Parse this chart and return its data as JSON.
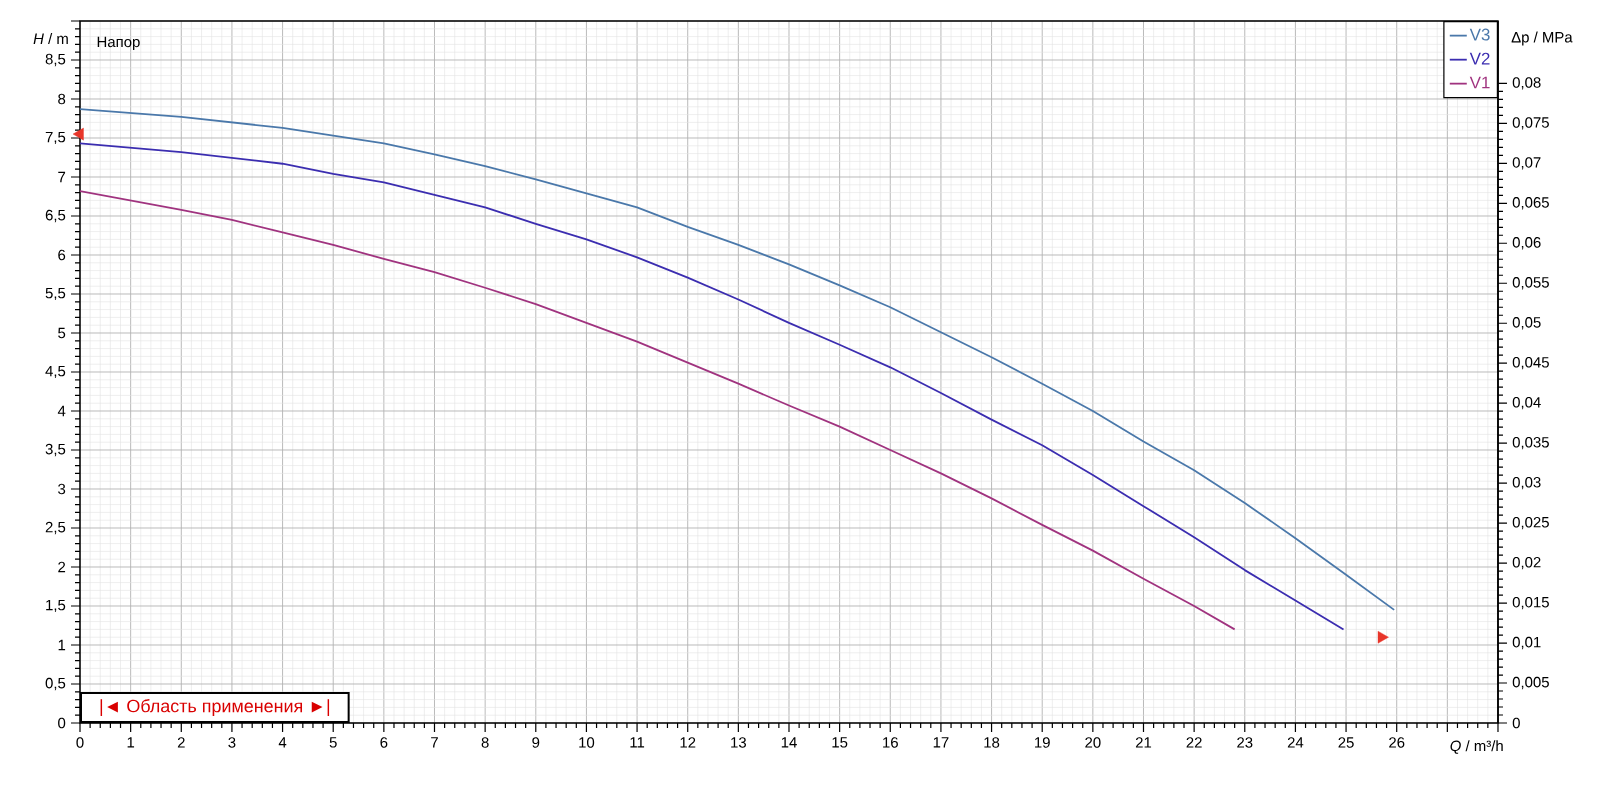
{
  "chart_data": {
    "type": "line",
    "xlabel": "*Q* / m³/h",
    "ylabel": "*H* / m",
    "y2label": "Δp / MPa",
    "annotations": [
      "Напор",
      "|◄ Область применения ►|"
    ],
    "xlim": [
      0,
      28
    ],
    "ylim": [
      0,
      9
    ],
    "y2lim": [
      0,
      0.0878
    ],
    "xticks": [
      0,
      1,
      2,
      3,
      4,
      5,
      6,
      7,
      8,
      9,
      10,
      11,
      12,
      13,
      14,
      15,
      16,
      17,
      18,
      19,
      20,
      21,
      22,
      23,
      24,
      25,
      26,
      {
        "value": 27,
        "label": null
      },
      {
        "value": 28,
        "label": null
      }
    ],
    "yticks": [
      0,
      {
        "value": 0.5,
        "label": "0,5"
      },
      1,
      {
        "value": 1.5,
        "label": "1,5"
      },
      2,
      {
        "value": 2.5,
        "label": "2,5"
      },
      3,
      {
        "value": 3.5,
        "label": "3,5"
      },
      4,
      {
        "value": 4.5,
        "label": "4,5"
      },
      5,
      {
        "value": 5.5,
        "label": "5,5"
      },
      6,
      {
        "value": 6.5,
        "label": "6,5"
      },
      7,
      {
        "value": 7.5,
        "label": "7,5"
      },
      8,
      {
        "value": 8.5,
        "label": "8,5"
      },
      {
        "value": 9,
        "label": null
      }
    ],
    "y2ticks": [
      0,
      {
        "value": 0.005,
        "label": "0,005"
      },
      {
        "value": 0.01,
        "label": "0,01"
      },
      {
        "value": 0.015,
        "label": "0,015"
      },
      {
        "value": 0.02,
        "label": "0,02"
      },
      {
        "value": 0.025,
        "label": "0,025"
      },
      {
        "value": 0.03,
        "label": "0,03"
      },
      {
        "value": 0.035,
        "label": "0,035"
      },
      {
        "value": 0.04,
        "label": "0,04"
      },
      {
        "value": 0.045,
        "label": "0,045"
      },
      {
        "value": 0.05,
        "label": "0,05"
      },
      {
        "value": 0.055,
        "label": "0,055"
      },
      {
        "value": 0.06,
        "label": "0,06"
      },
      {
        "value": 0.065,
        "label": "0,065"
      },
      {
        "value": 0.07,
        "label": "0,07"
      },
      {
        "value": 0.075,
        "label": "0,075"
      },
      {
        "value": 0.08,
        "label": "0,08"
      }
    ],
    "grid": true,
    "legend": "top right",
    "series": [
      {
        "name": "V3",
        "color": "#4a78aa",
        "x": [
          0,
          2,
          4,
          5,
          6,
          7,
          8,
          9,
          10,
          11,
          12,
          13,
          14,
          15,
          16,
          17,
          18,
          19,
          20,
          21,
          22,
          23,
          24,
          25,
          25.95
        ],
        "values": [
          7.87,
          7.77,
          7.63,
          7.53,
          7.43,
          7.29,
          7.14,
          6.97,
          6.79,
          6.61,
          6.36,
          6.13,
          5.88,
          5.61,
          5.33,
          5.01,
          4.69,
          4.35,
          4.0,
          3.61,
          3.24,
          2.82,
          2.37,
          1.9,
          1.45
        ]
      },
      {
        "name": "V2",
        "color": "#3b2db0",
        "x": [
          0,
          2,
          4,
          5,
          6,
          7,
          8,
          9,
          10,
          11,
          12,
          13,
          14,
          15,
          16,
          17,
          18,
          19,
          20,
          21,
          22,
          23,
          24,
          24.95
        ],
        "values": [
          7.43,
          7.32,
          7.17,
          7.04,
          6.93,
          6.77,
          6.61,
          6.4,
          6.2,
          5.97,
          5.71,
          5.43,
          5.13,
          4.85,
          4.56,
          4.23,
          3.89,
          3.56,
          3.18,
          2.78,
          2.38,
          1.96,
          1.57,
          1.2
        ]
      },
      {
        "name": "V1",
        "color": "#a0337f",
        "x": [
          0,
          2,
          3,
          4,
          5,
          6,
          7,
          8,
          9,
          10,
          11,
          12,
          13,
          14,
          15,
          16,
          17,
          18,
          19,
          20,
          21,
          22,
          22.8
        ],
        "values": [
          6.82,
          6.58,
          6.45,
          6.29,
          6.13,
          5.95,
          5.78,
          5.58,
          5.37,
          5.13,
          4.89,
          4.62,
          4.35,
          4.07,
          3.8,
          3.5,
          3.2,
          2.88,
          2.54,
          2.21,
          1.85,
          1.5,
          1.2
        ]
      },
      {
        "type": "scatter",
        "marker": "triangle",
        "color": "#e8362a",
        "x": [
          0,
          25.7
        ],
        "values": [
          7.55,
          1.1
        ]
      }
    ]
  }
}
